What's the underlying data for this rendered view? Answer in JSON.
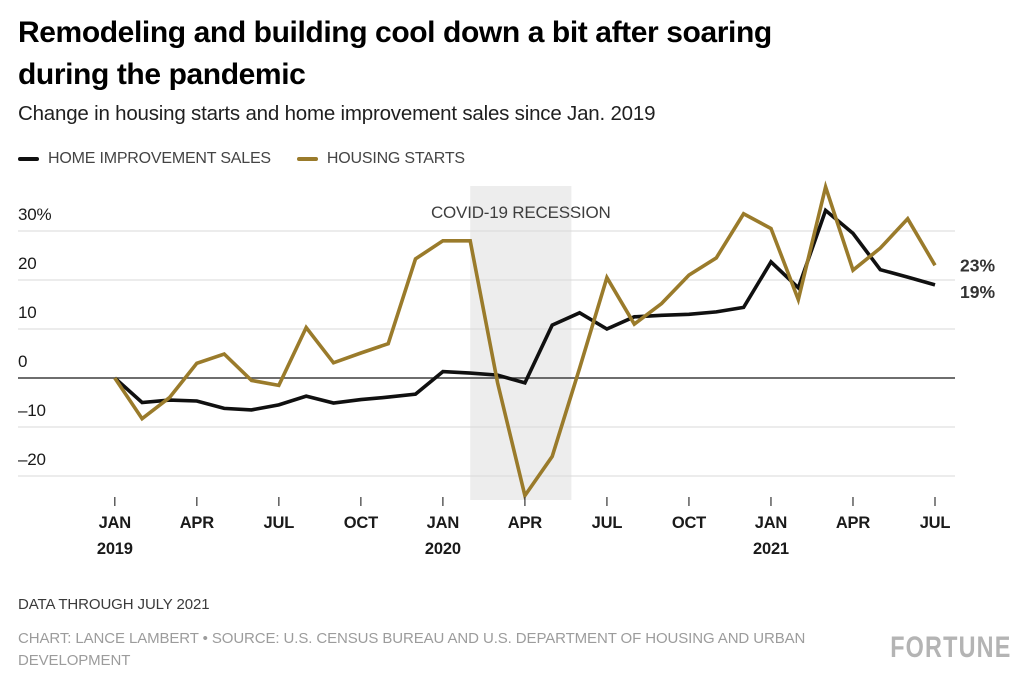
{
  "header": {
    "title": "Remodeling and building cool down a bit after soaring during the pandemic",
    "title_lines": [
      "Remodeling and building cool down a bit after soaring",
      "during the pandemic"
    ],
    "subtitle": "Change in housing starts and home improvement sales since Jan. 2019"
  },
  "legend": {
    "items": [
      {
        "label": "HOME IMPROVEMENT SALES",
        "color": "#101010"
      },
      {
        "label": "HOUSING STARTS",
        "color": "#9a7b2b"
      }
    ]
  },
  "chart_data": {
    "type": "line",
    "title": "Remodeling and building cool down a bit after soaring during the pandemic",
    "subtitle": "Change in housing starts and home improvement sales since Jan. 2019",
    "unit": "percent change since Jan. 2019",
    "ylim": [
      -25,
      39.5
    ],
    "grid": true,
    "months": [
      "Jan 2019",
      "Feb 2019",
      "Mar 2019",
      "Apr 2019",
      "May 2019",
      "Jun 2019",
      "Jul 2019",
      "Aug 2019",
      "Sep 2019",
      "Oct 2019",
      "Nov 2019",
      "Dec 2019",
      "Jan 2020",
      "Feb 2020",
      "Mar 2020",
      "Apr 2020",
      "May 2020",
      "Jun 2020",
      "Jul 2020",
      "Aug 2020",
      "Sep 2020",
      "Oct 2020",
      "Nov 2020",
      "Dec 2020",
      "Jan 2021",
      "Feb 2021",
      "Mar 2021",
      "Apr 2021",
      "May 2021",
      "Jun 2021",
      "Jul 2021"
    ],
    "y_axis": {
      "ticks": [
        {
          "value": 30,
          "label": "30%"
        },
        {
          "value": 20,
          "label": "20"
        },
        {
          "value": 10,
          "label": "10"
        },
        {
          "value": 0,
          "label": "0"
        },
        {
          "value": -10,
          "label": "–10"
        },
        {
          "value": -20,
          "label": "–20"
        }
      ]
    },
    "x_axis": {
      "ticks": [
        {
          "index": 0,
          "label": "JAN",
          "year": "2019"
        },
        {
          "index": 3,
          "label": "APR"
        },
        {
          "index": 6,
          "label": "JUL"
        },
        {
          "index": 9,
          "label": "OCT"
        },
        {
          "index": 12,
          "label": "JAN",
          "year": "2020"
        },
        {
          "index": 15,
          "label": "APR"
        },
        {
          "index": 18,
          "label": "JUL"
        },
        {
          "index": 21,
          "label": "OCT"
        },
        {
          "index": 24,
          "label": "JAN",
          "year": "2021"
        },
        {
          "index": 27,
          "label": "APR"
        },
        {
          "index": 30,
          "label": "JUL"
        }
      ]
    },
    "recession_band": {
      "label": "COVID-19 RECESSION",
      "start_month": "Feb 2020",
      "end_month": "May 2020",
      "start_index": 13,
      "end_index": 16.7
    },
    "series": [
      {
        "name": "HOME IMPROVEMENT SALES",
        "slug": "home-improvement-sales",
        "color": "#101010",
        "end_label": "19%",
        "values": [
          0,
          -5,
          -4.5,
          -4.7,
          -6.2,
          -6.5,
          -5.5,
          -3.7,
          -5.1,
          -4.4,
          -3.9,
          -3.3,
          1.3,
          1,
          0.6,
          -1,
          10.8,
          13.3,
          10,
          12.5,
          12.8,
          13,
          13.5,
          14.4,
          23.7,
          18.4,
          34.2,
          29.5,
          22.1,
          20.6,
          19
        ]
      },
      {
        "name": "HOUSING STARTS",
        "slug": "housing-starts",
        "color": "#9a7b2b",
        "end_label": "23%",
        "values": [
          0,
          -8.3,
          -4,
          3,
          4.9,
          -0.5,
          -1.5,
          10.3,
          3.1,
          5.1,
          7,
          24.3,
          28,
          28,
          -1,
          -24,
          -16,
          2,
          20.5,
          11,
          15.2,
          21,
          24.5,
          33.5,
          30.5,
          16,
          39,
          22,
          26.5,
          32.5,
          23
        ]
      }
    ]
  },
  "colors": {
    "grid_line": "#d9d9d9",
    "zero_line": "#3f3f3f",
    "tick_mark": "#444444",
    "recession_band": "#ededed",
    "axis_text": "#1a1a1a",
    "annotation_text": "#3e3e3e",
    "end_label_text": "#333333"
  },
  "footer": {
    "note": "DATA THROUGH JULY 2021",
    "credit": "CHART: LANCE LAMBERT • SOURCE: U.S. CENSUS BUREAU AND U.S. DEPARTMENT OF HOUSING AND URBAN DEVELOPMENT",
    "logo": "FORTUNE"
  }
}
